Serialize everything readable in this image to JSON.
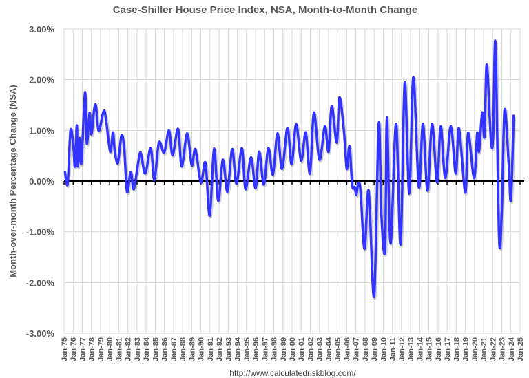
{
  "chart_data": {
    "type": "line",
    "title": "Case-Shiller House Price Index, NSA, Month-to-Month Change",
    "xlabel": "",
    "ylabel": "Month-over-month Percentage Change (NSA)",
    "ylim": [
      -3,
      3
    ],
    "xlim": [
      1975,
      2025
    ],
    "y_ticks": [
      "-3.00%",
      "-2.00%",
      "-1.00%",
      "0.00%",
      "1.00%",
      "2.00%",
      "3.00%"
    ],
    "x_ticks": [
      "Jan-75",
      "Jan-76",
      "Jan-77",
      "Jan-78",
      "Jan-79",
      "Jan-80",
      "Jan-81",
      "Jan-82",
      "Jan-83",
      "Jan-84",
      "Jan-85",
      "Jan-86",
      "Jan-87",
      "Jan-88",
      "Jan-89",
      "Jan-90",
      "Jan-91",
      "Jan-92",
      "Jan-93",
      "Jan-94",
      "Jan-95",
      "Jan-96",
      "Jan-97",
      "Jan-98",
      "Jan-99",
      "Jan-00",
      "Jan-01",
      "Jan-02",
      "Jan-03",
      "Jan-04",
      "Jan-05",
      "Jan-06",
      "Jan-07",
      "Jan-08",
      "Jan-09",
      "Jan-10",
      "Jan-11",
      "Jan-12",
      "Jan-13",
      "Jan-14",
      "Jan-15",
      "Jan-16",
      "Jan-17",
      "Jan-18",
      "Jan-19",
      "Jan-20",
      "Jan-21",
      "Jan-22",
      "Jan-23",
      "Jan-24",
      "Jan-25"
    ],
    "grid": true,
    "series_color": "#3333ff",
    "zero_line_color": "#000000",
    "source": "http://www.calculatedriskblog.com/",
    "series": [
      {
        "points": [
          [
            1975.1,
            0.18
          ],
          [
            1975.4,
            -0.05
          ],
          [
            1975.7,
            0.99
          ],
          [
            1976.0,
            0.74
          ],
          [
            1976.2,
            0.29
          ],
          [
            1976.4,
            1.1
          ],
          [
            1976.5,
            0.29
          ],
          [
            1976.7,
            0.85
          ],
          [
            1976.9,
            0.36
          ],
          [
            1977.3,
            1.75
          ],
          [
            1977.5,
            0.74
          ],
          [
            1977.8,
            1.35
          ],
          [
            1978.0,
            0.92
          ],
          [
            1978.3,
            1.41
          ],
          [
            1978.5,
            1.48
          ],
          [
            1978.8,
            0.99
          ],
          [
            1979.3,
            1.36
          ],
          [
            1979.55,
            1.28
          ],
          [
            1980.06,
            0.58
          ],
          [
            1980.36,
            0.96
          ],
          [
            1980.57,
            0.58
          ],
          [
            1980.9,
            0.36
          ],
          [
            1981.3,
            0.9
          ],
          [
            1981.6,
            0.63
          ],
          [
            1981.9,
            -0.21
          ],
          [
            1982.25,
            0.15
          ],
          [
            1982.4,
            0.13
          ],
          [
            1982.65,
            -0.16
          ],
          [
            1983.1,
            0.33
          ],
          [
            1983.4,
            0.56
          ],
          [
            1983.9,
            0.15
          ],
          [
            1984.5,
            0.65
          ],
          [
            1984.9,
            0.02
          ],
          [
            1985.4,
            0.76
          ],
          [
            1985.97,
            0.56
          ],
          [
            1986.5,
            1.0
          ],
          [
            1986.9,
            0.51
          ],
          [
            1987.5,
            1.03
          ],
          [
            1987.9,
            0.29
          ],
          [
            1988.5,
            0.94
          ],
          [
            1989.0,
            0.31
          ],
          [
            1989.4,
            0.63
          ],
          [
            1990.0,
            -0.03
          ],
          [
            1990.5,
            0.36
          ],
          [
            1990.97,
            -0.68
          ],
          [
            1991.45,
            0.64
          ],
          [
            1991.9,
            -0.39
          ],
          [
            1992.4,
            0.42
          ],
          [
            1992.8,
            -0.14
          ],
          [
            1993.0,
            -0.12
          ],
          [
            1993.45,
            0.63
          ],
          [
            1993.9,
            -0.05
          ],
          [
            1994.5,
            0.65
          ],
          [
            1994.9,
            -0.16
          ],
          [
            1995.5,
            0.47
          ],
          [
            1996.0,
            -0.14
          ],
          [
            1996.4,
            0.58
          ],
          [
            1996.9,
            -0.07
          ],
          [
            1997.4,
            0.65
          ],
          [
            1997.9,
            0.13
          ],
          [
            1998.4,
            0.94
          ],
          [
            1998.9,
            0.24
          ],
          [
            1999.5,
            1.05
          ],
          [
            1999.95,
            0.33
          ],
          [
            2000.45,
            1.12
          ],
          [
            2001.0,
            0.4
          ],
          [
            2001.5,
            0.96
          ],
          [
            2001.96,
            0.15
          ],
          [
            2002.4,
            1.35
          ],
          [
            2003.0,
            0.42
          ],
          [
            2003.6,
            1.08
          ],
          [
            2004.0,
            0.58
          ],
          [
            2004.35,
            1.48
          ],
          [
            2004.9,
            0.76
          ],
          [
            2005.2,
            1.65
          ],
          [
            2005.7,
            0.96
          ],
          [
            2006.0,
            0.24
          ],
          [
            2006.3,
            0.69
          ],
          [
            2006.6,
            -0.09
          ],
          [
            2006.87,
            -0.12
          ],
          [
            2007.05,
            -0.27
          ],
          [
            2007.25,
            -0.05
          ],
          [
            2007.5,
            -0.18
          ],
          [
            2007.95,
            -1.34
          ],
          [
            2008.4,
            -0.19
          ],
          [
            2009.0,
            -2.27
          ],
          [
            2009.5,
            1.13
          ],
          [
            2009.8,
            -0.68
          ],
          [
            2010.2,
            -1.34
          ],
          [
            2010.4,
            1.26
          ],
          [
            2010.8,
            -1.23
          ],
          [
            2011.4,
            1.13
          ],
          [
            2011.9,
            -1.25
          ],
          [
            2012.35,
            1.94
          ],
          [
            2012.85,
            -0.25
          ],
          [
            2013.3,
            2.05
          ],
          [
            2013.9,
            -0.12
          ],
          [
            2014.35,
            1.13
          ],
          [
            2014.85,
            -0.19
          ],
          [
            2015.35,
            1.13
          ],
          [
            2015.9,
            -0.03
          ],
          [
            2016.3,
            1.08
          ],
          [
            2016.8,
            0.06
          ],
          [
            2017.4,
            1.08
          ],
          [
            2017.95,
            0.15
          ],
          [
            2018.3,
            1.04
          ],
          [
            2019.0,
            -0.23
          ],
          [
            2019.3,
            0.95
          ],
          [
            2019.96,
            0.06
          ],
          [
            2020.3,
            0.95
          ],
          [
            2020.5,
            0.58
          ],
          [
            2020.85,
            1.35
          ],
          [
            2021.1,
            0.88
          ],
          [
            2021.35,
            2.3
          ],
          [
            2021.8,
            0.83
          ],
          [
            2022.05,
            0.88
          ],
          [
            2022.3,
            2.73
          ],
          [
            2022.7,
            -1.11
          ],
          [
            2023.0,
            -0.59
          ],
          [
            2023.3,
            1.4
          ],
          [
            2023.75,
            0.36
          ],
          [
            2024.0,
            -0.37
          ],
          [
            2024.3,
            1.29
          ]
        ]
      }
    ]
  }
}
